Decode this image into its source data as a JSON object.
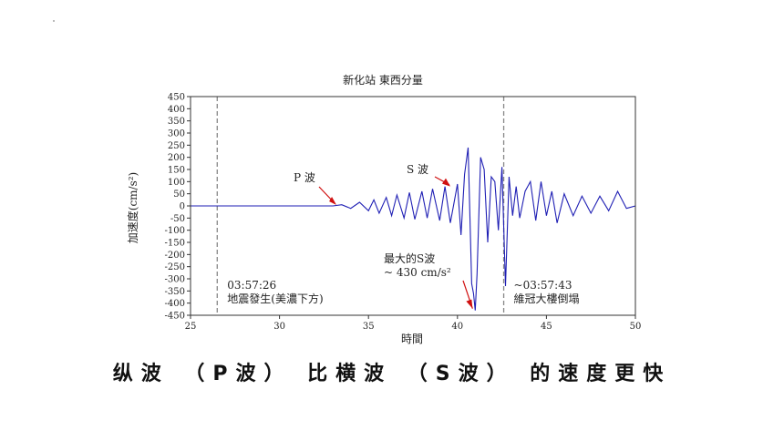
{
  "caption": "纵波 （P波） 比横波 （S波） 的速度更快",
  "chart_data": {
    "type": "line",
    "title": "新化站 東西分量",
    "xlabel": "時間",
    "ylabel": "加速度(cm/s²)",
    "xlim": [
      25,
      50
    ],
    "ylim": [
      -450,
      450
    ],
    "xticks": [
      25,
      30,
      35,
      40,
      45,
      50
    ],
    "yticks": [
      450,
      400,
      350,
      300,
      250,
      200,
      150,
      100,
      50,
      0,
      -50,
      -100,
      -150,
      -200,
      -250,
      -300,
      -350,
      -400,
      -450
    ],
    "grid": false,
    "line_color": "#1f1fb4",
    "series": [
      {
        "x": [
          25,
          33,
          33.5,
          34,
          34.5,
          35,
          35.3,
          35.6,
          36,
          36.3,
          36.6,
          37,
          37.3,
          37.6,
          38,
          38.3,
          38.6,
          39,
          39.3,
          39.6,
          40,
          40.2,
          40.4,
          40.6,
          40.8,
          40.9,
          41.0,
          41.1,
          41.3,
          41.5,
          41.7,
          41.9,
          42.1,
          42.3,
          42.5,
          42.7,
          42.9,
          43.1,
          43.3,
          43.5,
          43.8,
          44.1,
          44.4,
          44.7,
          45.0,
          45.3,
          45.6,
          46,
          46.5,
          47,
          47.5,
          48,
          48.5,
          49,
          49.5,
          50
        ],
        "y": [
          0,
          0,
          5,
          -10,
          15,
          -20,
          25,
          -30,
          35,
          -40,
          45,
          -50,
          55,
          -55,
          60,
          -50,
          70,
          -60,
          80,
          -70,
          90,
          -120,
          130,
          240,
          -320,
          -360,
          -430,
          -280,
          200,
          150,
          -150,
          120,
          100,
          -100,
          160,
          -330,
          120,
          -40,
          80,
          -50,
          60,
          100,
          -60,
          100,
          -40,
          60,
          -70,
          50,
          -40,
          40,
          -30,
          40,
          -20,
          60,
          -10,
          0
        ]
      }
    ],
    "annotations": [
      {
        "text": "P 波",
        "x": 33.2,
        "y": 0
      },
      {
        "text": "S 波",
        "x": 39.6,
        "y": 80
      },
      {
        "text": "最大的S波",
        "x": 40.9,
        "y": -430
      },
      {
        "text": "~ 430 cm/s²",
        "x": 40.9,
        "y": -430
      }
    ],
    "events": [
      {
        "x": 26.5,
        "line1": "03:57:26",
        "line2": "地震發生(美濃下方)"
      },
      {
        "x": 42.6,
        "line1": "~03:57:43",
        "line2": "維冠大樓倒塌"
      }
    ]
  }
}
